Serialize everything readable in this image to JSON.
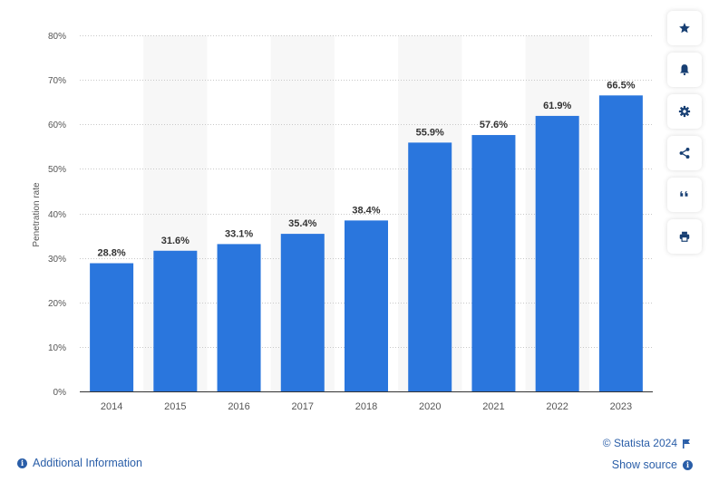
{
  "chart_data": {
    "type": "bar",
    "categories": [
      "2014",
      "2015",
      "2016",
      "2017",
      "2018",
      "2020",
      "2021",
      "2022",
      "2023"
    ],
    "values": [
      28.8,
      31.6,
      33.1,
      35.4,
      38.4,
      55.9,
      57.6,
      61.9,
      66.5
    ],
    "data_labels": [
      "28.8%",
      "31.6%",
      "33.1%",
      "35.4%",
      "38.4%",
      "55.9%",
      "57.6%",
      "61.9%",
      "66.5%"
    ],
    "ylabel": "Penetration rate",
    "xlabel": "",
    "ylim": [
      0,
      80
    ],
    "yticks": [
      0,
      10,
      20,
      30,
      40,
      50,
      60,
      70,
      80
    ],
    "ytick_labels": [
      "0%",
      "10%",
      "20%",
      "30%",
      "40%",
      "50%",
      "60%",
      "70%",
      "80%"
    ],
    "grid": true,
    "legend": false,
    "colors": {
      "bar": "#2a76dd",
      "band": "#f7f7f7",
      "grid": "#c8c8c8",
      "axis": "#333333",
      "text": "#555555"
    }
  },
  "toolbar": {
    "buttons": [
      {
        "name": "favorite-button",
        "icon": "star-icon"
      },
      {
        "name": "notification-button",
        "icon": "bell-icon"
      },
      {
        "name": "settings-button",
        "icon": "gear-icon"
      },
      {
        "name": "share-button",
        "icon": "share-icon"
      },
      {
        "name": "cite-button",
        "icon": "quote-icon"
      },
      {
        "name": "print-button",
        "icon": "print-icon"
      }
    ]
  },
  "footer": {
    "credit": "© Statista 2024",
    "additional_info": "Additional Information",
    "show_source": "Show source"
  }
}
